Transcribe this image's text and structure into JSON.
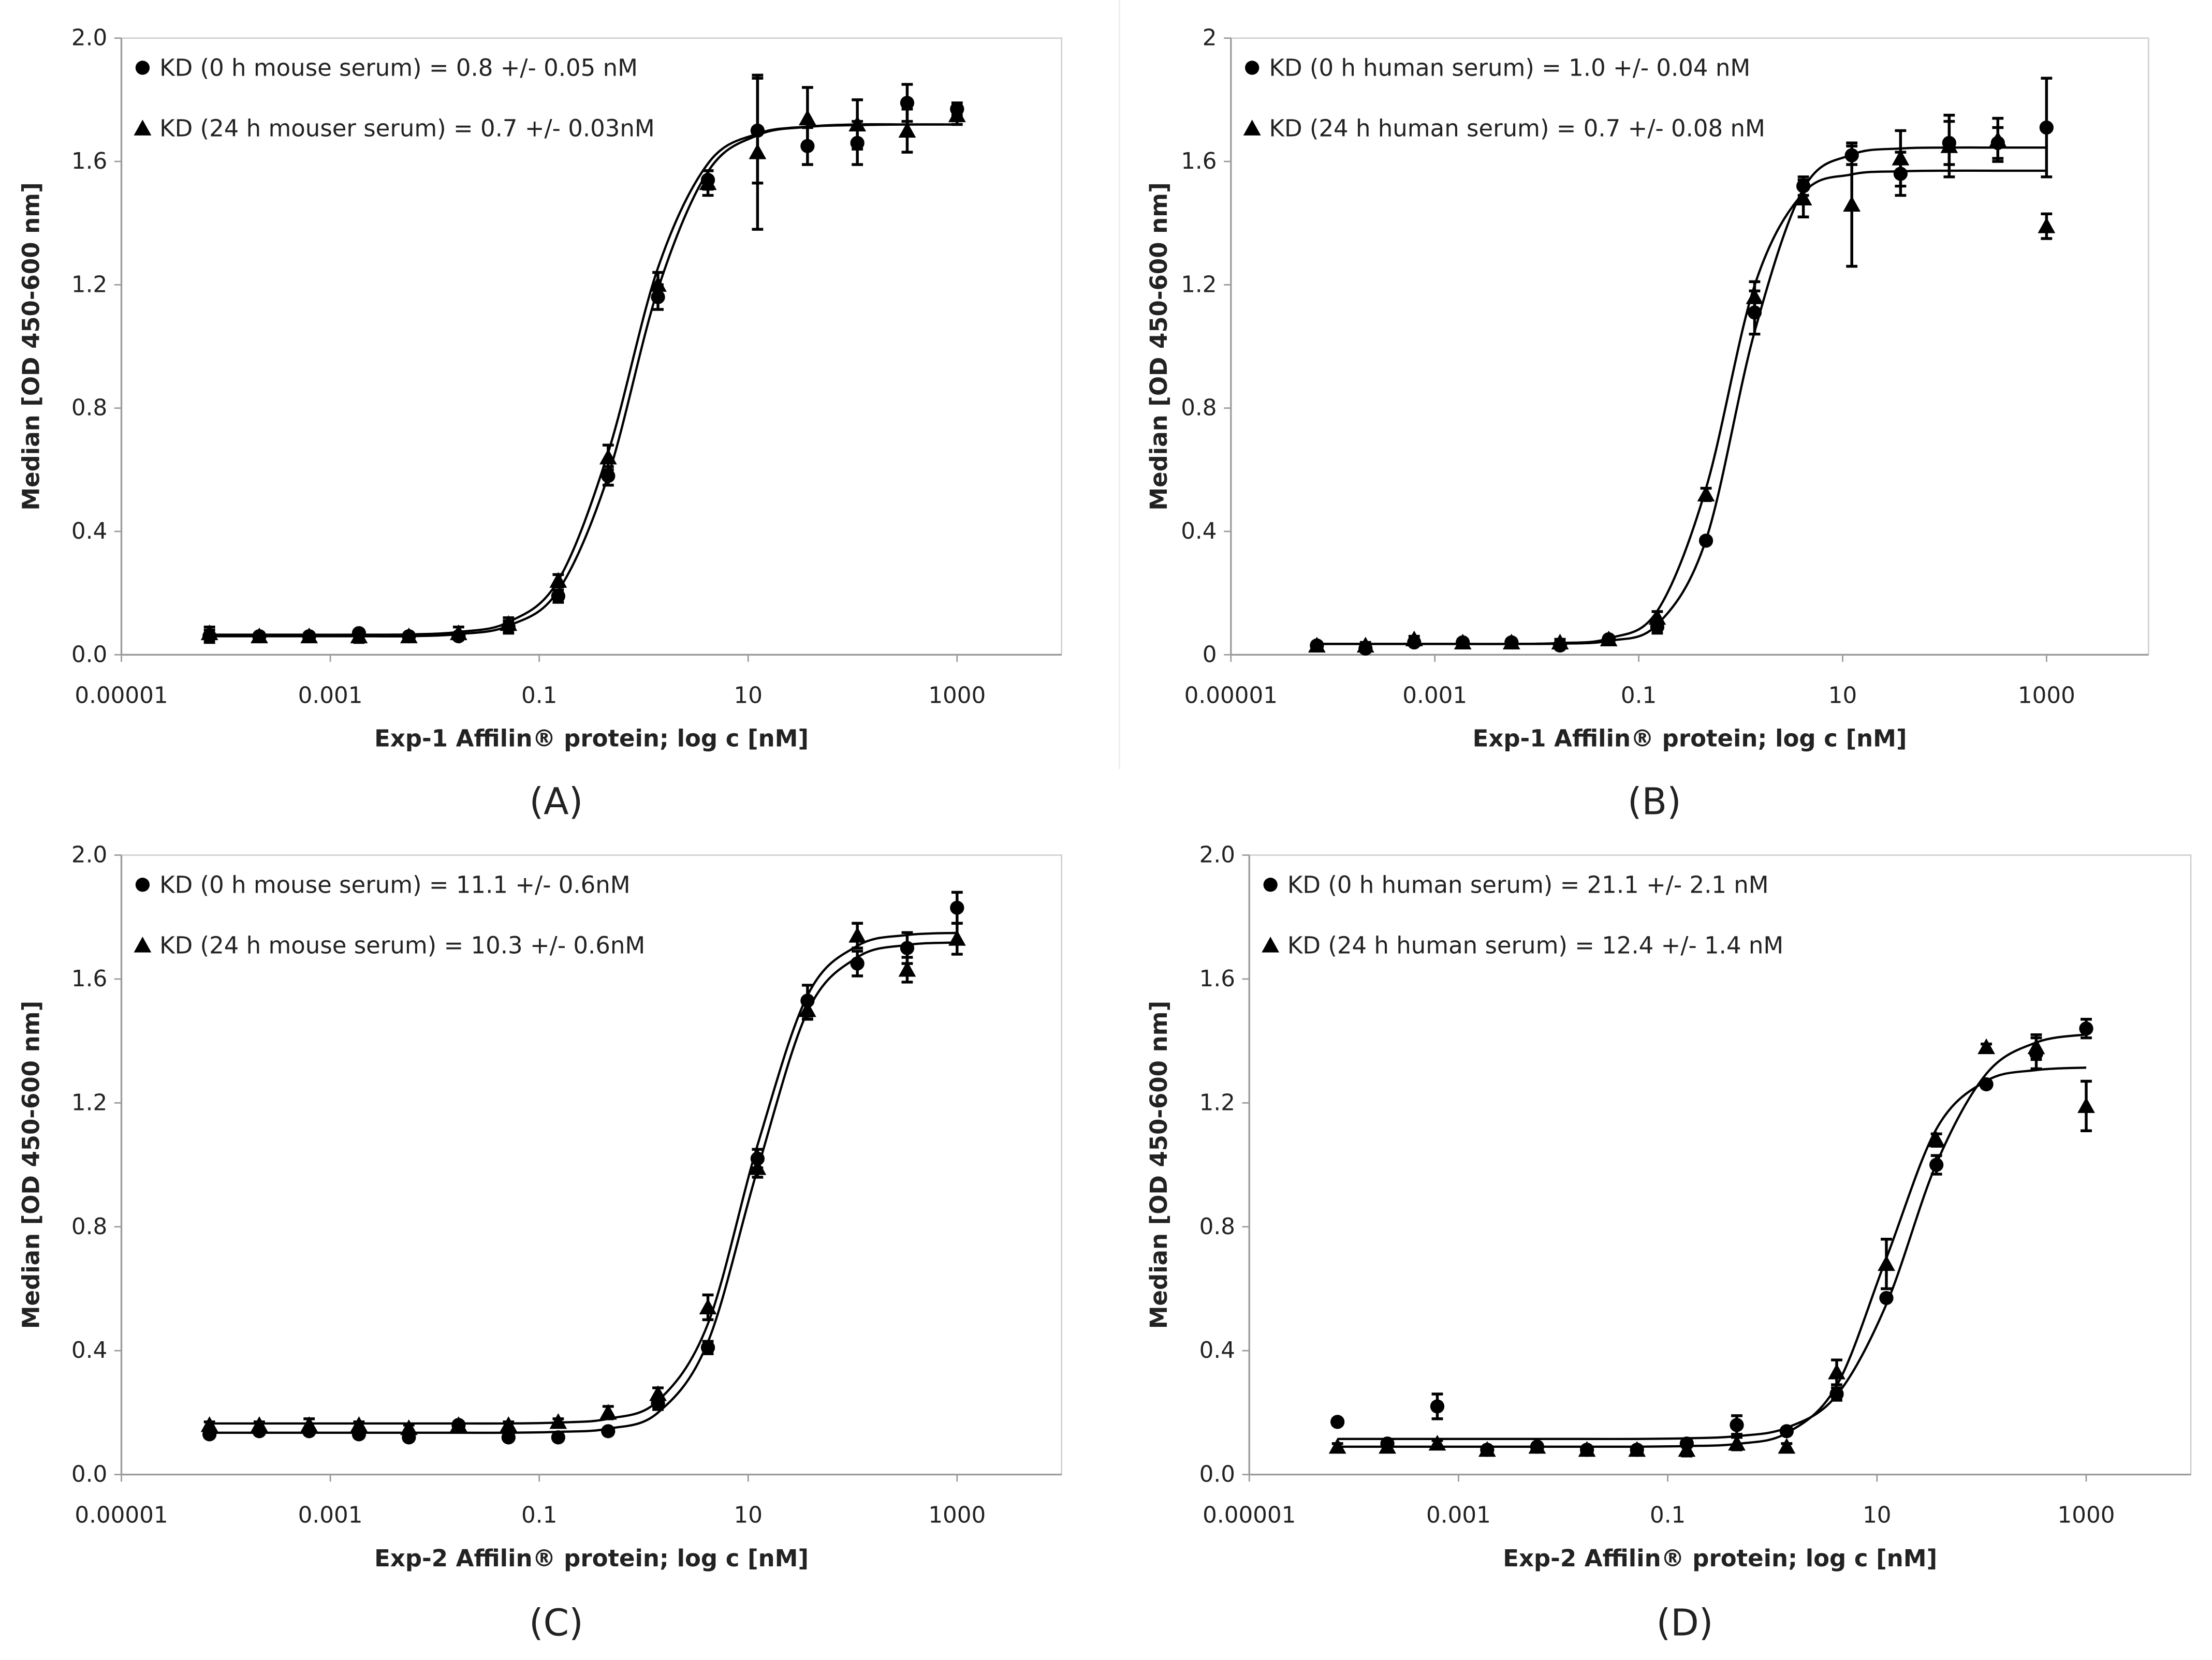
{
  "chart_data": [
    {
      "type": "scatter",
      "caption": "(A)",
      "xlabel": "Exp-1 Affilin® protein; log c [nM]",
      "ylabel": "Median [OD 450-600 nm]",
      "xscale": "log",
      "xlim": [
        1e-05,
        10000
      ],
      "xticks": [
        1e-05,
        0.001,
        0.1,
        10,
        1000
      ],
      "ylim": [
        0,
        2
      ],
      "yticks": [
        {
          "value": 0,
          "label": "0.0"
        },
        0.4,
        0.8,
        1.2,
        1.6,
        {
          "value": 2,
          "label": "2.0"
        }
      ],
      "grid": false,
      "x": [
        6.97e-05,
        0.000209,
        0.000627,
        0.00188,
        0.00565,
        0.0169,
        0.0508,
        0.152,
        0.457,
        1.37,
        4.12,
        12.3,
        37,
        111,
        333,
        1000
      ],
      "series": [
        {
          "name": "KD (0 h mouse serum) = 0.8 +/- 0.05 nM",
          "marker": "circle",
          "color": "#000000",
          "values": [
            0.06,
            0.06,
            0.06,
            0.07,
            0.06,
            0.06,
            0.09,
            0.19,
            0.58,
            1.16,
            1.54,
            1.7,
            1.65,
            1.66,
            1.79,
            1.77
          ],
          "errors": [
            0.02,
            0.01,
            0.01,
            0.01,
            0.01,
            0.01,
            0.02,
            0.02,
            0.03,
            0.04,
            0.03,
            0.17,
            0.06,
            0.07,
            0.06,
            0.02
          ],
          "fit": [
            0.06,
            0.06,
            0.06,
            0.06,
            0.06,
            0.067,
            0.094,
            0.208,
            0.581,
            1.186,
            1.567,
            1.685,
            1.712,
            1.718,
            1.72,
            1.72
          ]
        },
        {
          "name": "KD (24 h mouser serum) = 0.7 +/- 0.03nM",
          "marker": "triangle",
          "color": "#000000",
          "values": [
            0.07,
            0.06,
            0.06,
            0.06,
            0.06,
            0.07,
            0.1,
            0.24,
            0.64,
            1.2,
            1.53,
            1.63,
            1.74,
            1.72,
            1.7,
            1.75
          ],
          "errors": [
            0.02,
            0.01,
            0.01,
            0.02,
            0.01,
            0.02,
            0.02,
            0.02,
            0.04,
            0.04,
            0.04,
            0.25,
            0.1,
            0.08,
            0.07,
            0.03
          ],
          "fit": [
            0.065,
            0.065,
            0.065,
            0.065,
            0.066,
            0.074,
            0.106,
            0.241,
            0.656,
            1.255,
            1.593,
            1.69,
            1.713,
            1.72,
            1.72,
            1.72
          ]
        }
      ]
    },
    {
      "type": "scatter",
      "caption": "(B)",
      "xlabel": "Exp-1 Affilin® protein; log c [nM]",
      "ylabel": "Median [OD 450-600 nm]",
      "xscale": "log",
      "xlim": [
        1e-05,
        10000
      ],
      "xticks": [
        1e-05,
        0.001,
        0.1,
        10,
        1000
      ],
      "ylim": [
        0,
        2
      ],
      "yticks": [
        0,
        0.4,
        0.8,
        1.2,
        1.6,
        2
      ],
      "grid": false,
      "x": [
        6.97e-05,
        0.000209,
        0.000627,
        0.00188,
        0.00565,
        0.0169,
        0.0508,
        0.152,
        0.457,
        1.37,
        4.12,
        12.3,
        37,
        111,
        333,
        1000
      ],
      "series": [
        {
          "name": "KD (0 h human serum) = 1.0 +/- 0.04  nM",
          "marker": "circle",
          "color": "#000000",
          "values": [
            0.03,
            0.02,
            0.04,
            0.04,
            0.04,
            0.03,
            0.05,
            0.09,
            0.37,
            1.11,
            1.52,
            1.62,
            1.56,
            1.66,
            1.66,
            1.71
          ],
          "errors": [
            0.01,
            0.01,
            0.01,
            0.01,
            0.01,
            0.01,
            0.01,
            0.02,
            0.01,
            0.07,
            0.03,
            0.03,
            0.07,
            0.07,
            0.05,
            0.16
          ],
          "fit": [
            0.035,
            0.035,
            0.035,
            0.035,
            0.035,
            0.036,
            0.045,
            0.098,
            0.373,
            1.048,
            1.511,
            1.622,
            1.642,
            1.645,
            1.645,
            1.645
          ]
        },
        {
          "name": "KD (24 h human serum) = 0.7 +/- 0.08 nM",
          "marker": "triangle",
          "color": "#000000",
          "values": [
            0.03,
            0.03,
            0.05,
            0.04,
            0.04,
            0.04,
            0.05,
            0.12,
            0.52,
            1.16,
            1.48,
            1.46,
            1.61,
            1.65,
            1.67,
            1.39
          ],
          "errors": [
            0.01,
            0.01,
            0.01,
            0.01,
            0.01,
            0.01,
            0.01,
            0.02,
            0.02,
            0.05,
            0.06,
            0.2,
            0.09,
            0.1,
            0.07,
            0.04
          ],
          "fit": [
            0.035,
            0.035,
            0.035,
            0.035,
            0.035,
            0.038,
            0.053,
            0.142,
            0.54,
            1.198,
            1.498,
            1.558,
            1.568,
            1.57,
            1.57,
            1.57
          ]
        }
      ]
    },
    {
      "type": "scatter",
      "caption": "(C)",
      "xlabel": "Exp-2 Affilin® protein; log c [nM]",
      "ylabel": "Median [OD 450-600 nm]",
      "xscale": "log",
      "xlim": [
        1e-05,
        10000
      ],
      "xticks": [
        1e-05,
        0.001,
        0.1,
        10,
        1000
      ],
      "ylim": [
        0,
        2
      ],
      "yticks": [
        {
          "value": 0,
          "label": "0.0"
        },
        0.4,
        0.8,
        1.2,
        1.6,
        {
          "value": 2,
          "label": "2.0"
        }
      ],
      "grid": false,
      "x": [
        6.97e-05,
        0.000209,
        0.000627,
        0.00188,
        0.00565,
        0.0169,
        0.0508,
        0.152,
        0.457,
        1.37,
        4.12,
        12.3,
        37,
        111,
        333,
        1000
      ],
      "series": [
        {
          "name": "KD (0 h mouse serum) = 11.1 +/- 0.6nM",
          "marker": "circle",
          "color": "#000000",
          "values": [
            0.13,
            0.14,
            0.14,
            0.13,
            0.12,
            0.16,
            0.12,
            0.12,
            0.14,
            0.23,
            0.41,
            1.02,
            1.53,
            1.65,
            1.7,
            1.83
          ],
          "errors": [
            0.01,
            0.01,
            0.01,
            0.01,
            0.01,
            0.01,
            0.01,
            0.01,
            0.01,
            0.02,
            0.02,
            0.03,
            0.05,
            0.04,
            0.05,
            0.05
          ],
          "fit": [
            0.135,
            0.135,
            0.135,
            0.135,
            0.135,
            0.135,
            0.135,
            0.138,
            0.148,
            0.2,
            0.428,
            0.986,
            1.495,
            1.67,
            1.71,
            1.718
          ]
        },
        {
          "name": "KD (24 h mouse serum) = 10.3 +/- 0.6nM",
          "marker": "triangle",
          "color": "#000000",
          "values": [
            0.16,
            0.16,
            0.16,
            0.16,
            0.15,
            0.16,
            0.16,
            0.17,
            0.2,
            0.26,
            0.54,
            0.99,
            1.5,
            1.74,
            1.63,
            1.73
          ],
          "errors": [
            0.01,
            0.01,
            0.02,
            0.01,
            0.01,
            0.01,
            0.01,
            0.01,
            0.02,
            0.02,
            0.04,
            0.03,
            0.03,
            0.04,
            0.04,
            0.05
          ],
          "fit": [
            0.165,
            0.165,
            0.165,
            0.165,
            0.165,
            0.165,
            0.165,
            0.168,
            0.18,
            0.238,
            0.487,
            1.064,
            1.547,
            1.707,
            1.742,
            1.749
          ]
        }
      ]
    },
    {
      "type": "scatter",
      "caption": "(D)",
      "xlabel": "Exp-2 Affilin® protein; log c [nM]",
      "ylabel": "Median [OD 450-600 nm]",
      "xscale": "log",
      "xlim": [
        1e-05,
        10000
      ],
      "xticks": [
        1e-05,
        0.001,
        0.1,
        10,
        1000
      ],
      "ylim": [
        0,
        2
      ],
      "yticks": [
        {
          "value": 0,
          "label": "0.0"
        },
        0.4,
        0.8,
        1.2,
        1.6,
        {
          "value": 2,
          "label": "2.0"
        }
      ],
      "grid": false,
      "x": [
        6.97e-05,
        0.000209,
        0.000627,
        0.00188,
        0.00565,
        0.0169,
        0.0508,
        0.152,
        0.457,
        1.37,
        4.12,
        12.3,
        37,
        111,
        333,
        1000
      ],
      "series": [
        {
          "name": "KD (0 h human serum) = 21.1 +/- 2.1 nM",
          "marker": "circle",
          "color": "#000000",
          "values": [
            0.17,
            0.1,
            0.22,
            0.08,
            0.09,
            0.08,
            0.08,
            0.1,
            0.16,
            0.14,
            0.26,
            0.57,
            1.0,
            1.26,
            1.36,
            1.44
          ],
          "errors": [
            0.01,
            0.01,
            0.04,
            0.01,
            0.01,
            0.01,
            0.01,
            0.01,
            0.03,
            0.01,
            0.02,
            0.01,
            0.03,
            0.01,
            0.05,
            0.03
          ],
          "fit": [
            0.115,
            0.115,
            0.115,
            0.115,
            0.115,
            0.115,
            0.115,
            0.117,
            0.124,
            0.151,
            0.256,
            0.55,
            1.004,
            1.294,
            1.395,
            1.421
          ]
        },
        {
          "name": "KD (24 h human serum) = 12.4 +/- 1.4 nM",
          "marker": "triangle",
          "color": "#000000",
          "values": [
            0.09,
            0.09,
            0.1,
            0.08,
            0.09,
            0.08,
            0.08,
            0.08,
            0.1,
            0.09,
            0.33,
            0.68,
            1.08,
            1.38,
            1.38,
            1.19
          ],
          "errors": [
            0.01,
            0.01,
            0.01,
            0.01,
            0.01,
            0.01,
            0.01,
            0.02,
            0.02,
            0.01,
            0.04,
            0.08,
            0.02,
            0.01,
            0.04,
            0.08
          ],
          "fit": [
            0.09,
            0.09,
            0.09,
            0.09,
            0.09,
            0.09,
            0.09,
            0.092,
            0.099,
            0.134,
            0.287,
            0.699,
            1.116,
            1.271,
            1.306,
            1.314
          ]
        }
      ]
    }
  ]
}
